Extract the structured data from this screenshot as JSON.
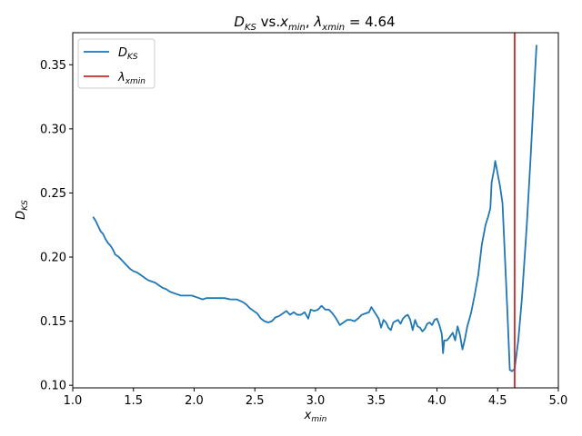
{
  "chart_data": {
    "type": "line",
    "title": "$D_{KS}$ vs.$x_{min}$, $\\lambda_{xmin} = 4.64$",
    "title_display": {
      "d": "D",
      "d_sub": "KS",
      "vs": " vs.",
      "x": "x",
      "x_sub": "min",
      "comma": ", ",
      "lambda": "λ",
      "lambda_sub": "xmin",
      "eq": " = 4.64"
    },
    "xlabel": {
      "main": "x",
      "sub": "min"
    },
    "ylabel": {
      "main": "D",
      "sub": "KS"
    },
    "xlim": [
      1.0,
      5.0
    ],
    "ylim": [
      0.098,
      0.375
    ],
    "xticks": [
      "1.0",
      "1.5",
      "2.0",
      "2.5",
      "3.0",
      "3.5",
      "4.0",
      "4.5",
      "5.0"
    ],
    "yticks": [
      "0.10",
      "0.15",
      "0.20",
      "0.25",
      "0.30",
      "0.35"
    ],
    "grid": false,
    "legend_position": "top-left",
    "series": [
      {
        "name": "D_KS",
        "legend": {
          "main": "D",
          "sub": "KS"
        },
        "color": "#1f77b4",
        "points": [
          [
            1.17,
            0.231
          ],
          [
            1.19,
            0.228
          ],
          [
            1.21,
            0.224
          ],
          [
            1.23,
            0.22
          ],
          [
            1.25,
            0.218
          ],
          [
            1.27,
            0.214
          ],
          [
            1.29,
            0.211
          ],
          [
            1.31,
            0.209
          ],
          [
            1.33,
            0.206
          ],
          [
            1.35,
            0.202
          ],
          [
            1.38,
            0.2
          ],
          [
            1.41,
            0.197
          ],
          [
            1.44,
            0.194
          ],
          [
            1.47,
            0.191
          ],
          [
            1.5,
            0.189
          ],
          [
            1.53,
            0.188
          ],
          [
            1.56,
            0.186
          ],
          [
            1.59,
            0.184
          ],
          [
            1.62,
            0.182
          ],
          [
            1.65,
            0.181
          ],
          [
            1.68,
            0.18
          ],
          [
            1.71,
            0.178
          ],
          [
            1.74,
            0.176
          ],
          [
            1.77,
            0.175
          ],
          [
            1.8,
            0.173
          ],
          [
            1.83,
            0.172
          ],
          [
            1.86,
            0.171
          ],
          [
            1.89,
            0.17
          ],
          [
            1.92,
            0.17
          ],
          [
            1.95,
            0.17
          ],
          [
            1.98,
            0.17
          ],
          [
            2.01,
            0.169
          ],
          [
            2.04,
            0.168
          ],
          [
            2.07,
            0.167
          ],
          [
            2.1,
            0.168
          ],
          [
            2.15,
            0.168
          ],
          [
            2.2,
            0.168
          ],
          [
            2.25,
            0.168
          ],
          [
            2.3,
            0.167
          ],
          [
            2.35,
            0.167
          ],
          [
            2.4,
            0.165
          ],
          [
            2.43,
            0.163
          ],
          [
            2.46,
            0.16
          ],
          [
            2.49,
            0.158
          ],
          [
            2.52,
            0.156
          ],
          [
            2.55,
            0.152
          ],
          [
            2.58,
            0.15
          ],
          [
            2.61,
            0.149
          ],
          [
            2.64,
            0.15
          ],
          [
            2.67,
            0.153
          ],
          [
            2.7,
            0.154
          ],
          [
            2.73,
            0.156
          ],
          [
            2.76,
            0.158
          ],
          [
            2.79,
            0.155
          ],
          [
            2.82,
            0.157
          ],
          [
            2.85,
            0.155
          ],
          [
            2.88,
            0.155
          ],
          [
            2.91,
            0.157
          ],
          [
            2.94,
            0.152
          ],
          [
            2.96,
            0.159
          ],
          [
            2.99,
            0.158
          ],
          [
            3.02,
            0.159
          ],
          [
            3.05,
            0.162
          ],
          [
            3.08,
            0.159
          ],
          [
            3.11,
            0.159
          ],
          [
            3.14,
            0.156
          ],
          [
            3.17,
            0.152
          ],
          [
            3.2,
            0.147
          ],
          [
            3.23,
            0.149
          ],
          [
            3.26,
            0.151
          ],
          [
            3.29,
            0.151
          ],
          [
            3.32,
            0.15
          ],
          [
            3.35,
            0.152
          ],
          [
            3.38,
            0.155
          ],
          [
            3.41,
            0.156
          ],
          [
            3.44,
            0.157
          ],
          [
            3.46,
            0.161
          ],
          [
            3.48,
            0.158
          ],
          [
            3.5,
            0.155
          ],
          [
            3.52,
            0.152
          ],
          [
            3.54,
            0.145
          ],
          [
            3.56,
            0.151
          ],
          [
            3.58,
            0.149
          ],
          [
            3.6,
            0.145
          ],
          [
            3.62,
            0.143
          ],
          [
            3.64,
            0.149
          ],
          [
            3.66,
            0.15
          ],
          [
            3.68,
            0.151
          ],
          [
            3.7,
            0.148
          ],
          [
            3.72,
            0.152
          ],
          [
            3.74,
            0.154
          ],
          [
            3.76,
            0.155
          ],
          [
            3.78,
            0.151
          ],
          [
            3.8,
            0.143
          ],
          [
            3.82,
            0.151
          ],
          [
            3.84,
            0.146
          ],
          [
            3.86,
            0.145
          ],
          [
            3.88,
            0.142
          ],
          [
            3.9,
            0.144
          ],
          [
            3.92,
            0.148
          ],
          [
            3.94,
            0.149
          ],
          [
            3.96,
            0.147
          ],
          [
            3.98,
            0.151
          ],
          [
            4.0,
            0.152
          ],
          [
            4.02,
            0.147
          ],
          [
            4.04,
            0.14
          ],
          [
            4.05,
            0.125
          ],
          [
            4.06,
            0.135
          ],
          [
            4.08,
            0.135
          ],
          [
            4.1,
            0.137
          ],
          [
            4.13,
            0.141
          ],
          [
            4.15,
            0.135
          ],
          [
            4.17,
            0.146
          ],
          [
            4.19,
            0.139
          ],
          [
            4.21,
            0.128
          ],
          [
            4.23,
            0.136
          ],
          [
            4.25,
            0.146
          ],
          [
            4.28,
            0.156
          ],
          [
            4.31,
            0.17
          ],
          [
            4.34,
            0.186
          ],
          [
            4.37,
            0.21
          ],
          [
            4.4,
            0.225
          ],
          [
            4.42,
            0.231
          ],
          [
            4.44,
            0.238
          ],
          [
            4.45,
            0.258
          ],
          [
            4.47,
            0.268
          ],
          [
            4.48,
            0.275
          ],
          [
            4.5,
            0.265
          ],
          [
            4.52,
            0.255
          ],
          [
            4.54,
            0.242
          ],
          [
            4.56,
            0.2
          ],
          [
            4.58,
            0.158
          ],
          [
            4.6,
            0.112
          ],
          [
            4.62,
            0.111
          ],
          [
            4.64,
            0.113
          ],
          [
            4.67,
            0.135
          ],
          [
            4.7,
            0.168
          ],
          [
            4.74,
            0.225
          ],
          [
            4.77,
            0.275
          ],
          [
            4.8,
            0.33
          ],
          [
            4.82,
            0.365
          ]
        ]
      }
    ],
    "vline": {
      "name": "λ_xmin",
      "legend": {
        "main": "λ",
        "sub": "xmin"
      },
      "x": 4.64,
      "color": "#d62728"
    }
  }
}
